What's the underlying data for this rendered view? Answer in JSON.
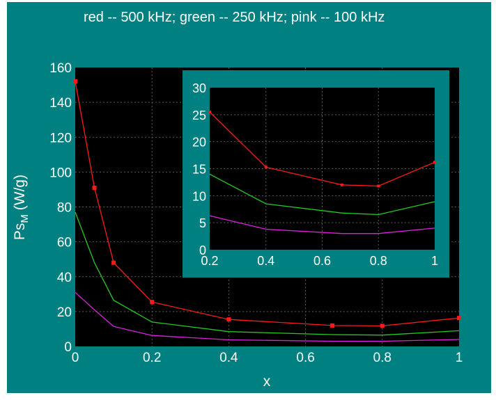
{
  "legend_title": "red -- 500 kHz;  green -- 250 kHz;  pink -- 100 kHz",
  "colors": {
    "background": "#008080",
    "plot_area": "#000000",
    "text": "#ffffff",
    "grid": "#5a5a5a",
    "red": "#ff1a1a",
    "green": "#22cc22",
    "pink": "#e020e0"
  },
  "chart_data": [
    {
      "type": "line",
      "title": "",
      "xlabel": "x",
      "ylabel_main": "Ps",
      "ylabel_sub": "M",
      "ylabel_units": " (W/g)",
      "xlim": [
        0,
        1
      ],
      "ylim": [
        0,
        160
      ],
      "xticks": [
        0,
        0.2,
        0.4,
        0.6,
        0.8,
        1
      ],
      "xtick_labels": [
        "0",
        "0.2",
        "0.4",
        "0.6",
        "0.8",
        "1"
      ],
      "yticks": [
        0,
        20,
        40,
        60,
        80,
        100,
        120,
        140,
        160
      ],
      "ytick_labels": [
        "0",
        "20",
        "40",
        "60",
        "80",
        "100",
        "120",
        "140",
        "160"
      ],
      "grid": true,
      "series": [
        {
          "color": "red",
          "markers": true,
          "x": [
            0,
            0.05,
            0.1,
            0.2,
            0.4,
            0.67,
            0.8,
            1
          ],
          "values": [
            152,
            91,
            48,
            25.5,
            15.5,
            12,
            11.8,
            16.3
          ]
        },
        {
          "color": "green",
          "markers": false,
          "x": [
            0,
            0.05,
            0.1,
            0.2,
            0.4,
            0.67,
            0.8,
            1
          ],
          "values": [
            77,
            48,
            26.5,
            14,
            8.5,
            6.8,
            6.5,
            9
          ]
        },
        {
          "color": "pink",
          "markers": false,
          "x": [
            0,
            0.05,
            0.1,
            0.2,
            0.4,
            0.67,
            0.8,
            1
          ],
          "values": [
            31,
            21,
            11.5,
            6.3,
            3.8,
            3,
            3,
            4
          ]
        }
      ]
    },
    {
      "type": "line",
      "title": "",
      "inset": true,
      "xlim": [
        0.2,
        1
      ],
      "ylim": [
        0,
        30
      ],
      "xticks": [
        0.2,
        0.4,
        0.6,
        0.8,
        1
      ],
      "xtick_labels": [
        "0.2",
        "0.4",
        "0.6",
        "0.8",
        "1"
      ],
      "yticks": [
        0,
        5,
        10,
        15,
        20,
        25,
        30
      ],
      "ytick_labels": [
        "0",
        "5",
        "10",
        "15",
        "20",
        "25",
        "30"
      ],
      "grid": true,
      "series": [
        {
          "color": "red",
          "markers": true,
          "x": [
            0.2,
            0.4,
            0.67,
            0.8,
            1
          ],
          "values": [
            25.5,
            15.3,
            12,
            11.8,
            16.2
          ]
        },
        {
          "color": "green",
          "markers": false,
          "x": [
            0.2,
            0.4,
            0.67,
            0.8,
            1
          ],
          "values": [
            14,
            8.5,
            6.8,
            6.5,
            8.9
          ]
        },
        {
          "color": "pink",
          "markers": false,
          "x": [
            0.2,
            0.4,
            0.67,
            0.8,
            1
          ],
          "values": [
            6.3,
            3.8,
            3,
            3,
            4
          ]
        }
      ]
    }
  ]
}
